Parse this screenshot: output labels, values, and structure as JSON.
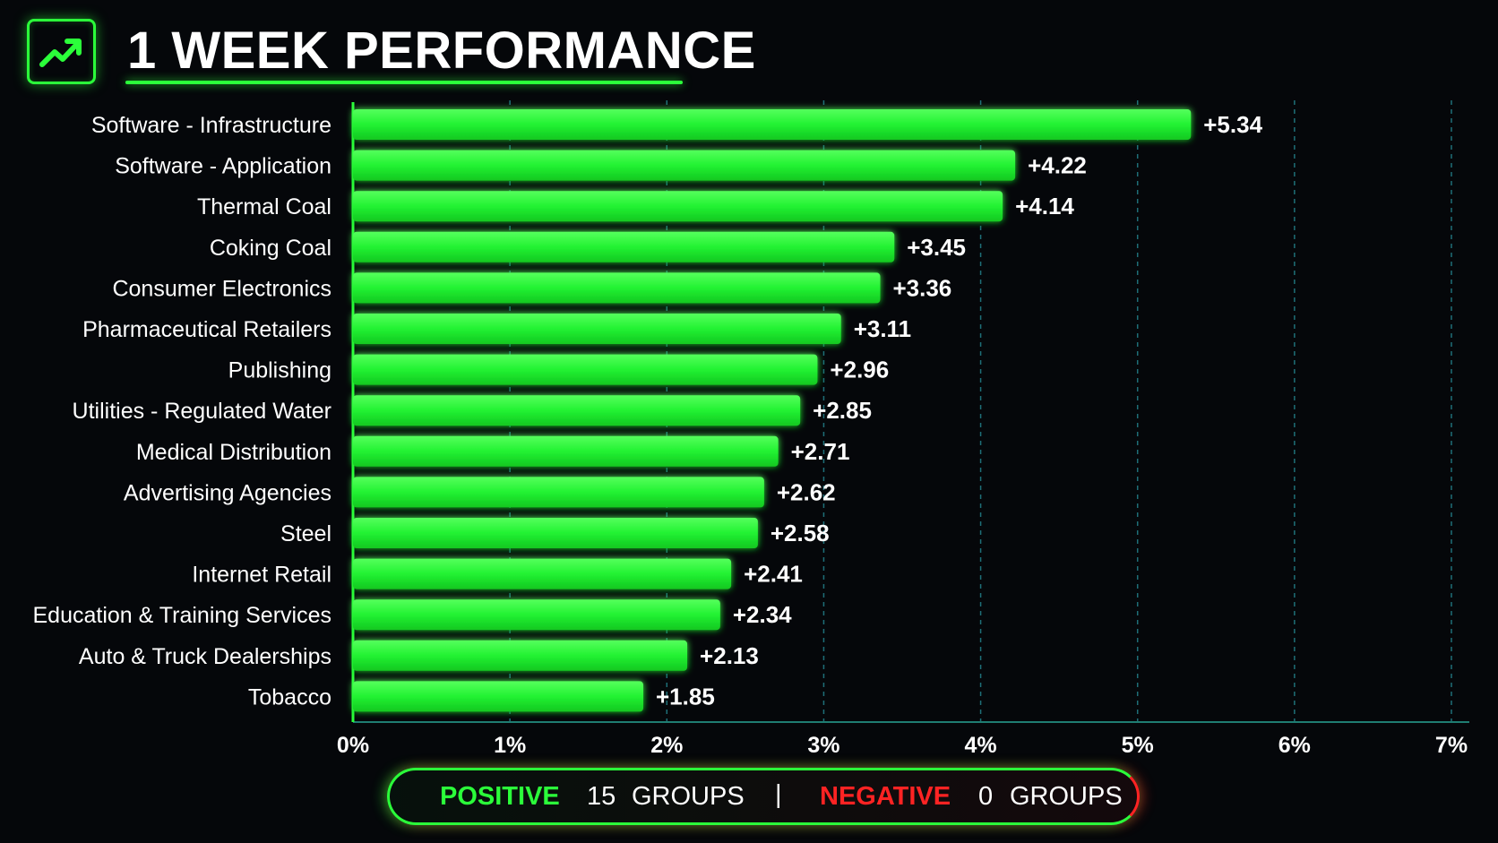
{
  "header": {
    "title": "1 WEEK PERFORMANCE",
    "logo_icon": "trending-up-icon"
  },
  "colors": {
    "positive": "#2bff3a",
    "negative": "#ff2323",
    "background": "#05070a",
    "grid": "#1e6f78"
  },
  "chart_data": {
    "type": "bar",
    "orientation": "horizontal",
    "title": "1 WEEK PERFORMANCE",
    "categories": [
      "Software - Infrastructure",
      "Software - Application",
      "Thermal Coal",
      "Coking Coal",
      "Consumer Electronics",
      "Pharmaceutical Retailers",
      "Publishing",
      "Utilities - Regulated Water",
      "Medical Distribution",
      "Advertising Agencies",
      "Steel",
      "Internet Retail",
      "Education & Training Services",
      "Auto & Truck Dealerships",
      "Tobacco"
    ],
    "values": [
      5.34,
      4.22,
      4.14,
      3.45,
      3.36,
      3.11,
      2.96,
      2.85,
      2.71,
      2.62,
      2.58,
      2.41,
      2.34,
      2.13,
      1.85
    ],
    "value_labels": [
      "+5.34",
      "+4.22",
      "+4.14",
      "+3.45",
      "+3.36",
      "+3.11",
      "+2.96",
      "+2.85",
      "+2.71",
      "+2.62",
      "+2.58",
      "+2.41",
      "+2.34",
      "+2.13",
      "+1.85"
    ],
    "xlim": [
      0,
      7
    ],
    "x_ticks": [
      0,
      1,
      2,
      3,
      4,
      5,
      6,
      7
    ],
    "x_tick_labels": [
      "0%",
      "1%",
      "2%",
      "3%",
      "4%",
      "5%",
      "6%",
      "7%"
    ],
    "grid": "vertical dashed",
    "xlabel": "",
    "ylabel": ""
  },
  "legend": {
    "positive_label": "POSITIVE",
    "positive_count": "15",
    "positive_unit": "GROUPS",
    "separator": "|",
    "negative_label": "NEGATIVE",
    "negative_count": "0",
    "negative_unit": "GROUPS"
  }
}
